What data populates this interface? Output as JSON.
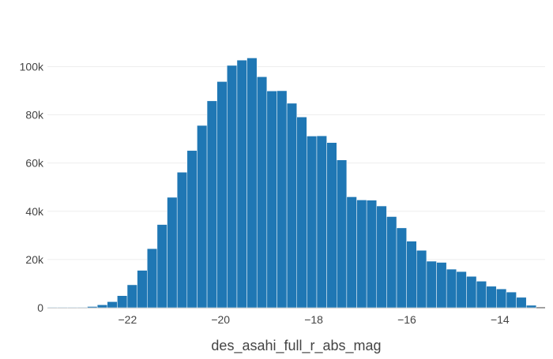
{
  "chart_data": {
    "type": "bar",
    "title": "",
    "xlabel": "des_asahi_full_r_abs_mag",
    "ylabel": "",
    "bin_width": 0.2143,
    "x_start": -23.72,
    "xlim": [
      -23.72,
      -13.03
    ],
    "ylim": [
      0,
      108000
    ],
    "x_ticks": [
      -22,
      -20,
      -18,
      -16,
      -14
    ],
    "x_tick_labels": [
      "−22",
      "−20",
      "−18",
      "−16",
      "−14"
    ],
    "y_ticks": [
      0,
      20000,
      40000,
      60000,
      80000,
      100000
    ],
    "y_tick_labels": [
      "0",
      "20k",
      "40k",
      "60k",
      "80k",
      "100k"
    ],
    "values": [
      10,
      40,
      90,
      200,
      500,
      1200,
      2500,
      5000,
      9500,
      15500,
      24500,
      34500,
      45800,
      56200,
      65200,
      75600,
      85800,
      93800,
      100500,
      102700,
      103600,
      95800,
      89900,
      90000,
      84800,
      79100,
      71200,
      71300,
      68500,
      61300,
      46000,
      44700,
      44600,
      42200,
      37800,
      33100,
      27600,
      23800,
      19300,
      18800,
      16000,
      15000,
      13000,
      11000,
      8900,
      7800,
      6500,
      4300,
      1000
    ],
    "grid": true,
    "legend": "none",
    "bar_color": "#1f77b4"
  }
}
